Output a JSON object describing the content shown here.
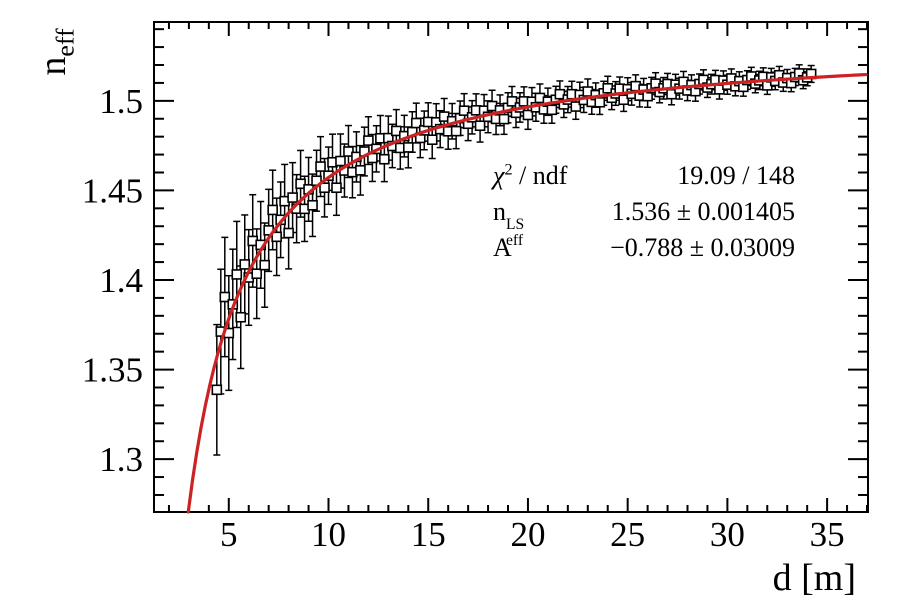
{
  "axes": {
    "x_title": "d [m]",
    "y_title_base": "n",
    "y_title_sub": "eff"
  },
  "stats": {
    "chi2": {
      "symbol": "χ",
      "sup": "2",
      "rest": " / ndf",
      "value": "19.09 / 148"
    },
    "neff": {
      "base": "n",
      "sup": "LS",
      "sub": "eff",
      "value": "1.536 ± 0.001405"
    },
    "A": {
      "label": "A",
      "value": "−0.788 ± 0.03009"
    }
  },
  "chart_data": {
    "type": "scatter",
    "title": "",
    "xlabel": "d [m]",
    "ylabel": "n_eff",
    "xlim": [
      1.25,
      37.05
    ],
    "ylim": [
      1.2705,
      1.544
    ],
    "grid": false,
    "legend": null,
    "x_major_ticks": [
      5,
      10,
      15,
      20,
      25,
      30,
      35
    ],
    "x_tick_labels": [
      "5",
      "10",
      "15",
      "20",
      "25",
      "30",
      "35"
    ],
    "x_minor_step": 1,
    "y_major_ticks": [
      1.3,
      1.35,
      1.4,
      1.45,
      1.5
    ],
    "y_tick_labels": [
      "1.3",
      "1.35",
      "1.4",
      "1.45",
      "1.5"
    ],
    "y_minor_step": 0.01,
    "marker": "open-square",
    "colors": {
      "curve": "#cc2222",
      "marker": "#000000",
      "frame": "#000000",
      "background": "#ffffff"
    },
    "fit": {
      "formula": "n_eff(d) = n_LS + A / d",
      "n_LS": 1.536,
      "n_LS_err": 0.001405,
      "A": -0.788,
      "A_err": 0.03009,
      "chi2": 19.09,
      "ndf": 148
    },
    "points": [
      [
        4.4,
        1.3387,
        0.0364
      ],
      [
        4.6,
        1.3712,
        0.0348
      ],
      [
        4.8,
        1.3905,
        0.0333
      ],
      [
        5.0,
        1.3704,
        0.032
      ],
      [
        5.2,
        1.3864,
        0.0308
      ],
      [
        5.4,
        1.4031,
        0.0296
      ],
      [
        5.6,
        1.3792,
        0.0286
      ],
      [
        5.8,
        1.4087,
        0.0276
      ],
      [
        6.0,
        1.4014,
        0.0267
      ],
      [
        6.2,
        1.4218,
        0.0258
      ],
      [
        6.4,
        1.4035,
        0.025
      ],
      [
        6.6,
        1.4196,
        0.0242
      ],
      [
        6.8,
        1.4083,
        0.0235
      ],
      [
        7.0,
        1.4277,
        0.0229
      ],
      [
        7.2,
        1.4391,
        0.0222
      ],
      [
        7.4,
        1.4241,
        0.0216
      ],
      [
        7.6,
        1.4336,
        0.0211
      ],
      [
        7.8,
        1.444,
        0.0205
      ],
      [
        8.0,
        1.4262,
        0.02
      ],
      [
        8.2,
        1.446,
        0.0195
      ],
      [
        8.4,
        1.4398,
        0.019
      ],
      [
        8.6,
        1.4537,
        0.0186
      ],
      [
        8.8,
        1.4397,
        0.0182
      ],
      [
        9.0,
        1.4506,
        0.0178
      ],
      [
        9.2,
        1.4417,
        0.0174
      ],
      [
        9.4,
        1.4554,
        0.017
      ],
      [
        9.6,
        1.4633,
        0.0167
      ],
      [
        9.8,
        1.4515,
        0.0163
      ],
      [
        10.0,
        1.4582,
        0.016
      ],
      [
        10.2,
        1.4657,
        0.0157
      ],
      [
        10.4,
        1.4515,
        0.0154
      ],
      [
        10.6,
        1.4664,
        0.0151
      ],
      [
        10.8,
        1.4611,
        0.0148
      ],
      [
        11.0,
        1.4717,
        0.0145
      ],
      [
        11.2,
        1.4602,
        0.0143
      ],
      [
        11.4,
        1.4687,
        0.014
      ],
      [
        11.6,
        1.4612,
        0.0138
      ],
      [
        11.8,
        1.4717,
        0.0136
      ],
      [
        12.0,
        1.4778,
        0.0133
      ],
      [
        12.2,
        1.4681,
        0.0131
      ],
      [
        12.4,
        1.4732,
        0.0129
      ],
      [
        12.6,
        1.4791,
        0.0127
      ],
      [
        12.8,
        1.4674,
        0.0125
      ],
      [
        13.0,
        1.4792,
        0.0123
      ],
      [
        13.2,
        1.4748,
        0.0121
      ],
      [
        13.4,
        1.4832,
        0.0119
      ],
      [
        13.6,
        1.4737,
        0.0118
      ],
      [
        13.8,
        1.4803,
        0.0116
      ],
      [
        14.0,
        1.474,
        0.0114
      ],
      [
        14.2,
        1.4826,
        0.0113
      ],
      [
        14.4,
        1.4876,
        0.0111
      ],
      [
        14.6,
        1.4793,
        0.011
      ],
      [
        14.8,
        1.4835,
        0.0108
      ],
      [
        15.0,
        1.4882,
        0.0107
      ],
      [
        15.2,
        1.4783,
        0.0105
      ],
      [
        15.4,
        1.488,
        0.0104
      ],
      [
        15.6,
        1.4842,
        0.0103
      ],
      [
        15.8,
        1.4912,
        0.0101
      ],
      [
        16.0,
        1.483,
        0.01
      ],
      [
        16.2,
        1.4886,
        0.0099
      ],
      [
        16.4,
        1.4831,
        0.0098
      ],
      [
        16.6,
        1.4903,
        0.0096
      ],
      [
        16.8,
        1.4945,
        0.0095
      ],
      [
        17.0,
        1.4872,
        0.0094
      ],
      [
        17.2,
        1.4908,
        0.0093
      ],
      [
        17.4,
        1.4947,
        0.0092
      ],
      [
        17.6,
        1.4861,
        0.0091
      ],
      [
        17.8,
        1.4945,
        0.009
      ],
      [
        18.0,
        1.4911,
        0.0089
      ],
      [
        18.2,
        1.4971,
        0.0088
      ],
      [
        18.4,
        1.4899,
        0.0087
      ],
      [
        18.6,
        1.4947,
        0.0086
      ],
      [
        18.8,
        1.4898,
        0.0085
      ],
      [
        19.0,
        1.4961,
        0.0084
      ],
      [
        19.2,
        1.4997,
        0.0083
      ],
      [
        19.4,
        1.4933,
        0.0082
      ],
      [
        19.6,
        1.4963,
        0.0082
      ],
      [
        19.8,
        1.4997,
        0.0081
      ],
      [
        20.0,
        1.4921,
        0.008
      ],
      [
        20.2,
        1.4995,
        0.0079
      ],
      [
        20.4,
        1.4964,
        0.0078
      ],
      [
        20.6,
        1.5016,
        0.0078
      ],
      [
        20.8,
        1.4952,
        0.0077
      ],
      [
        21.0,
        1.4995,
        0.0076
      ],
      [
        21.2,
        1.495,
        0.0075
      ],
      [
        21.4,
        1.5006,
        0.0075
      ],
      [
        21.6,
        1.5037,
        0.0074
      ],
      [
        21.8,
        1.498,
        0.0073
      ],
      [
        22.0,
        1.5007,
        0.0073
      ],
      [
        22.2,
        1.5037,
        0.0072
      ],
      [
        22.4,
        1.4968,
        0.0071
      ],
      [
        22.6,
        1.5033,
        0.0071
      ],
      [
        22.8,
        1.5005,
        0.007
      ],
      [
        23.0,
        1.5052,
        0.007
      ],
      [
        23.2,
        1.4994,
        0.0069
      ],
      [
        23.4,
        1.5032,
        0.0068
      ],
      [
        23.6,
        1.4992,
        0.0068
      ],
      [
        23.8,
        1.5042,
        0.0067
      ],
      [
        24.0,
        1.507,
        0.0067
      ],
      [
        24.2,
        1.5017,
        0.0066
      ],
      [
        24.4,
        1.5041,
        0.0066
      ],
      [
        24.6,
        1.5068,
        0.0065
      ],
      [
        24.8,
        1.5006,
        0.0065
      ],
      [
        25.0,
        1.5065,
        0.0064
      ],
      [
        25.2,
        1.5039,
        0.0063
      ],
      [
        25.4,
        1.5082,
        0.0063
      ],
      [
        25.6,
        1.5029,
        0.0063
      ],
      [
        25.8,
        1.5063,
        0.0062
      ],
      [
        26.0,
        1.5026,
        0.0062
      ],
      [
        26.2,
        1.507,
        0.0061
      ],
      [
        26.4,
        1.5096,
        0.0061
      ],
      [
        26.6,
        1.5049,
        0.006
      ],
      [
        26.8,
        1.507,
        0.006
      ],
      [
        27.0,
        1.5094,
        0.0059
      ],
      [
        27.2,
        1.5037,
        0.0059
      ],
      [
        27.4,
        1.509,
        0.0058
      ],
      [
        27.6,
        1.5068,
        0.0058
      ],
      [
        27.8,
        1.5106,
        0.0058
      ],
      [
        28.0,
        1.5058,
        0.0057
      ],
      [
        28.2,
        1.5088,
        0.0057
      ],
      [
        28.4,
        1.5054,
        0.0056
      ],
      [
        28.6,
        1.5094,
        0.0056
      ],
      [
        28.8,
        1.5117,
        0.0056
      ],
      [
        29.0,
        1.5074,
        0.0055
      ],
      [
        29.2,
        1.5093,
        0.0055
      ],
      [
        29.4,
        1.5116,
        0.0054
      ],
      [
        29.6,
        1.5064,
        0.0054
      ],
      [
        29.8,
        1.5113,
        0.0054
      ],
      [
        30.0,
        1.509,
        0.0053
      ],
      [
        30.2,
        1.5125,
        0.0053
      ],
      [
        30.4,
        1.5081,
        0.0053
      ],
      [
        30.6,
        1.511,
        0.0052
      ],
      [
        30.8,
        1.5078,
        0.0052
      ],
      [
        31.0,
        1.5116,
        0.0052
      ],
      [
        31.2,
        1.5136,
        0.0051
      ],
      [
        31.4,
        1.5096,
        0.0051
      ],
      [
        31.6,
        1.5114,
        0.0051
      ],
      [
        31.8,
        1.5134,
        0.005
      ],
      [
        32.0,
        1.5086,
        0.005
      ],
      [
        32.2,
        1.5131,
        0.005
      ],
      [
        32.4,
        1.5111,
        0.0049
      ],
      [
        32.6,
        1.5143,
        0.0049
      ],
      [
        32.8,
        1.5102,
        0.0049
      ],
      [
        33.0,
        1.5127,
        0.0048
      ],
      [
        33.2,
        1.5099,
        0.0048
      ],
      [
        33.4,
        1.5133,
        0.0048
      ],
      [
        33.6,
        1.5153,
        0.0048
      ],
      [
        33.8,
        1.5115,
        0.0047
      ],
      [
        34.0,
        1.5131,
        0.0047
      ],
      [
        34.2,
        1.515,
        0.0047
      ]
    ]
  }
}
